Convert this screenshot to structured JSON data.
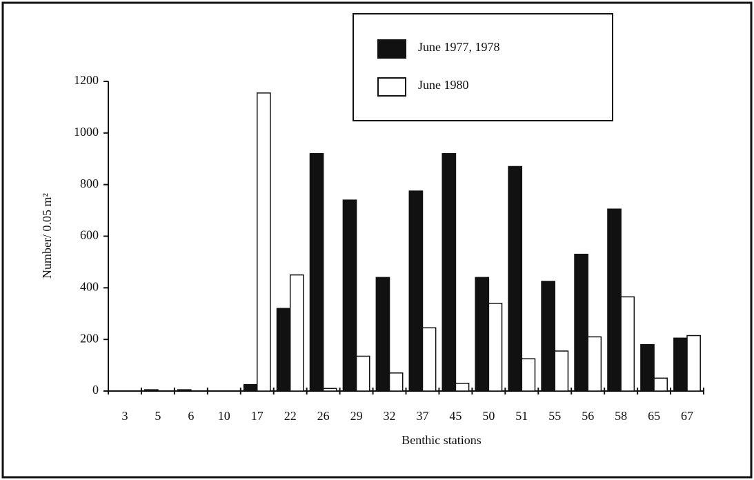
{
  "chart_data": {
    "type": "bar",
    "x_label": "Benthic stations",
    "y_label": "Number/ 0.05 m²",
    "categories": [
      "3",
      "5",
      "6",
      "10",
      "17",
      "22",
      "26",
      "29",
      "32",
      "37",
      "45",
      "50",
      "51",
      "55",
      "56",
      "58",
      "65",
      "67"
    ],
    "series": [
      {
        "name": "June 1977, 1978",
        "color": "#111111",
        "values": [
          0,
          5,
          5,
          0,
          25,
          320,
          920,
          740,
          440,
          775,
          920,
          440,
          870,
          425,
          530,
          705,
          180,
          205
        ]
      },
      {
        "name": "June 1980",
        "color": "#ffffff",
        "values": [
          0,
          0,
          0,
          0,
          1155,
          450,
          10,
          135,
          70,
          245,
          30,
          340,
          125,
          155,
          210,
          365,
          50,
          215
        ]
      }
    ],
    "ylim": [
      0,
      1200
    ],
    "yticks": [
      0,
      200,
      400,
      600,
      800,
      1000,
      1200
    ],
    "legend": "top"
  }
}
